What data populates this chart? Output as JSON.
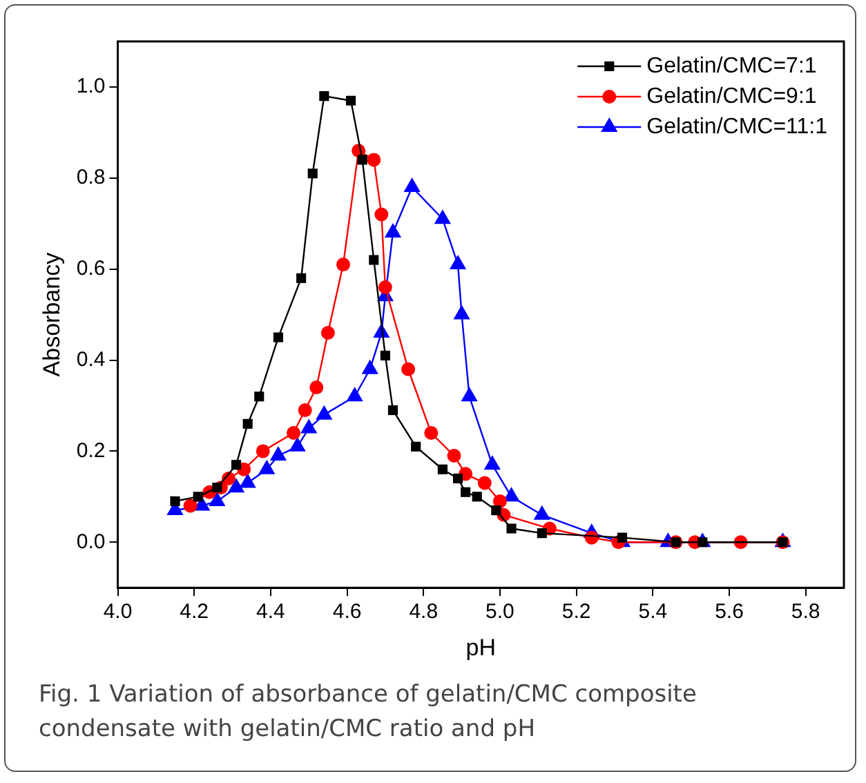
{
  "chart_data": {
    "type": "line",
    "xlabel": "pH",
    "ylabel": "Absorbancy",
    "annotations": [
      "Fig. 1 Variation of absorbance of gelatin/CMC composite condensate with gelatin/CMC ratio and pH"
    ],
    "xlim": [
      4.0,
      5.9
    ],
    "xticks": [
      {
        "value": 4.0,
        "label": "4.0"
      },
      4.2,
      4.4,
      4.6,
      4.8,
      {
        "value": 5.0,
        "label": "5.0"
      },
      5.2,
      5.4,
      5.6,
      5.8
    ],
    "ylim": [
      -0.1,
      1.1
    ],
    "yticks": [
      {
        "value": 0,
        "label": "0.0"
      },
      0.2,
      0.4,
      0.6,
      0.8,
      {
        "value": 1,
        "label": "1.0"
      }
    ],
    "grid": false,
    "legend": "top right",
    "line_style": "solid",
    "series": [
      {
        "name": "Gelatin/CMC=7:1",
        "color": "#000000",
        "marker": "square",
        "x": [
          4.15,
          4.21,
          4.26,
          4.31,
          4.34,
          4.37,
          4.42,
          4.48,
          4.51,
          4.54,
          4.61,
          4.64,
          4.67,
          4.7,
          4.72,
          4.78,
          4.85,
          4.89,
          4.91,
          4.94,
          4.99,
          5.03,
          5.11,
          5.32,
          5.46,
          5.53,
          5.74
        ],
        "values": [
          0.09,
          0.1,
          0.12,
          0.17,
          0.26,
          0.32,
          0.45,
          0.58,
          0.81,
          0.98,
          0.97,
          0.84,
          0.62,
          0.41,
          0.29,
          0.21,
          0.16,
          0.14,
          0.11,
          0.1,
          0.07,
          0.03,
          0.02,
          0.01,
          0,
          0,
          0
        ]
      },
      {
        "name": "Gelatin/CMC=9:1",
        "color": "#ff0000",
        "marker": "circle",
        "x": [
          4.19,
          4.24,
          4.27,
          4.29,
          4.33,
          4.38,
          4.46,
          4.49,
          4.52,
          4.55,
          4.59,
          4.63,
          4.67,
          4.69,
          4.7,
          4.76,
          4.82,
          4.88,
          4.91,
          4.96,
          5.0,
          5.01,
          5.13,
          5.24,
          5.31,
          5.46,
          5.51,
          5.63,
          5.74
        ],
        "values": [
          0.08,
          0.11,
          0.12,
          0.14,
          0.16,
          0.2,
          0.24,
          0.29,
          0.34,
          0.46,
          0.61,
          0.86,
          0.84,
          0.72,
          0.56,
          0.38,
          0.24,
          0.19,
          0.15,
          0.13,
          0.09,
          0.06,
          0.03,
          0.01,
          0,
          0,
          0,
          0,
          0
        ]
      },
      {
        "name": "Gelatin/CMC=11:1",
        "color": "#0000ff",
        "marker": "triangle",
        "x": [
          4.15,
          4.22,
          4.26,
          4.31,
          4.34,
          4.39,
          4.42,
          4.47,
          4.5,
          4.54,
          4.62,
          4.66,
          4.69,
          4.7,
          4.72,
          4.77,
          4.85,
          4.89,
          4.9,
          4.92,
          4.98,
          5.03,
          5.11,
          5.24,
          5.32,
          5.44,
          5.53,
          5.74
        ],
        "values": [
          0.07,
          0.08,
          0.09,
          0.12,
          0.13,
          0.16,
          0.19,
          0.21,
          0.25,
          0.28,
          0.32,
          0.38,
          0.46,
          0.54,
          0.68,
          0.78,
          0.71,
          0.61,
          0.5,
          0.32,
          0.17,
          0.1,
          0.06,
          0.02,
          0,
          0,
          0,
          0
        ]
      }
    ]
  }
}
